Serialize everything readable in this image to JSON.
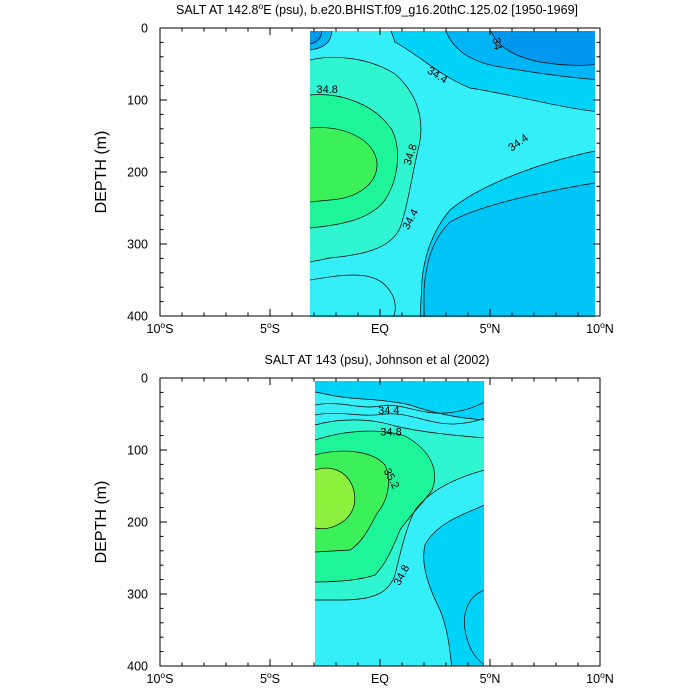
{
  "chart_data": [
    {
      "type": "contour",
      "title": "SALT AT 142.8°E (psu), b.e20.BHIST.f09_g16.20thC.125.02 [1950-1969]",
      "title_parts": {
        "pre": "SALT AT 142.8",
        "sup": "o",
        "post": "E (psu), b.e20.BHIST.f09_g16.20thC.125.02 [1950-1969]"
      },
      "ylabel": "DEPTH (m)",
      "xlabel": "",
      "xlim": [
        -10,
        10
      ],
      "ylim": [
        400,
        0
      ],
      "x_ticks": [
        {
          "value": -10,
          "num": "10",
          "sup": "o",
          "suf": "S"
        },
        {
          "value": -5,
          "num": "5",
          "sup": "o",
          "suf": "S"
        },
        {
          "value": 0,
          "num": "EQ",
          "sup": "",
          "suf": ""
        },
        {
          "value": 5,
          "num": "5",
          "sup": "o",
          "suf": "N"
        },
        {
          "value": 10,
          "num": "10",
          "sup": "o",
          "suf": "N"
        }
      ],
      "y_ticks": [
        0,
        100,
        200,
        300,
        400
      ],
      "data_extent": {
        "x": [
          -3,
          10
        ],
        "y": [
          0,
          400
        ]
      },
      "contour_interval": 0.2,
      "contour_labels": [
        {
          "text": "34",
          "x": 5.3,
          "y": 22,
          "angle": 78
        },
        {
          "text": "34.4",
          "x": 2.6,
          "y": 66,
          "angle": 32
        },
        {
          "text": "34.8",
          "x": -2.4,
          "y": 86,
          "angle": 0
        },
        {
          "text": "34.8",
          "x": 1.4,
          "y": 176,
          "angle": -72
        },
        {
          "text": "34.4",
          "x": 6.3,
          "y": 160,
          "angle": -35
        },
        {
          "text": "34.4",
          "x": 1.4,
          "y": 266,
          "angle": -62
        }
      ],
      "colors": [
        "#0097ee",
        "#00b5f5",
        "#00d2f8",
        "#35eff8",
        "#2ff5d0",
        "#1ef59a",
        "#3cf05a"
      ],
      "grid": false
    },
    {
      "type": "contour",
      "title": "SALT AT 143 (psu), Johnson et al (2002)",
      "title_parts": {
        "pre": "SALT AT 143 (psu), Johnson et al (2002)",
        "sup": "",
        "post": ""
      },
      "ylabel": "DEPTH (m)",
      "xlabel": "",
      "xlim": [
        -10,
        10
      ],
      "ylim": [
        400,
        0
      ],
      "x_ticks": [
        {
          "value": -10,
          "num": "10",
          "sup": "o",
          "suf": "S"
        },
        {
          "value": -5,
          "num": "5",
          "sup": "o",
          "suf": "S"
        },
        {
          "value": 0,
          "num": "EQ",
          "sup": "",
          "suf": ""
        },
        {
          "value": 5,
          "num": "5",
          "sup": "o",
          "suf": "N"
        },
        {
          "value": 10,
          "num": "10",
          "sup": "o",
          "suf": "N"
        }
      ],
      "y_ticks": [
        0,
        100,
        200,
        300,
        400
      ],
      "data_extent": {
        "x": [
          -2.8,
          5
        ],
        "y": [
          0,
          400
        ]
      },
      "contour_interval": 0.1,
      "contour_labels": [
        {
          "text": "34.4",
          "x": 0.4,
          "y": 46,
          "angle": 0
        },
        {
          "text": "34.8",
          "x": 0.5,
          "y": 76,
          "angle": 0
        },
        {
          "text": "35.2",
          "x": 0.5,
          "y": 140,
          "angle": 62
        },
        {
          "text": "34.8",
          "x": 1.0,
          "y": 274,
          "angle": -62
        }
      ],
      "colors": [
        "#00d2f8",
        "#35eff8",
        "#2ff5d0",
        "#1ef59a",
        "#3cf05a",
        "#8cf03c"
      ],
      "grid": false
    }
  ]
}
